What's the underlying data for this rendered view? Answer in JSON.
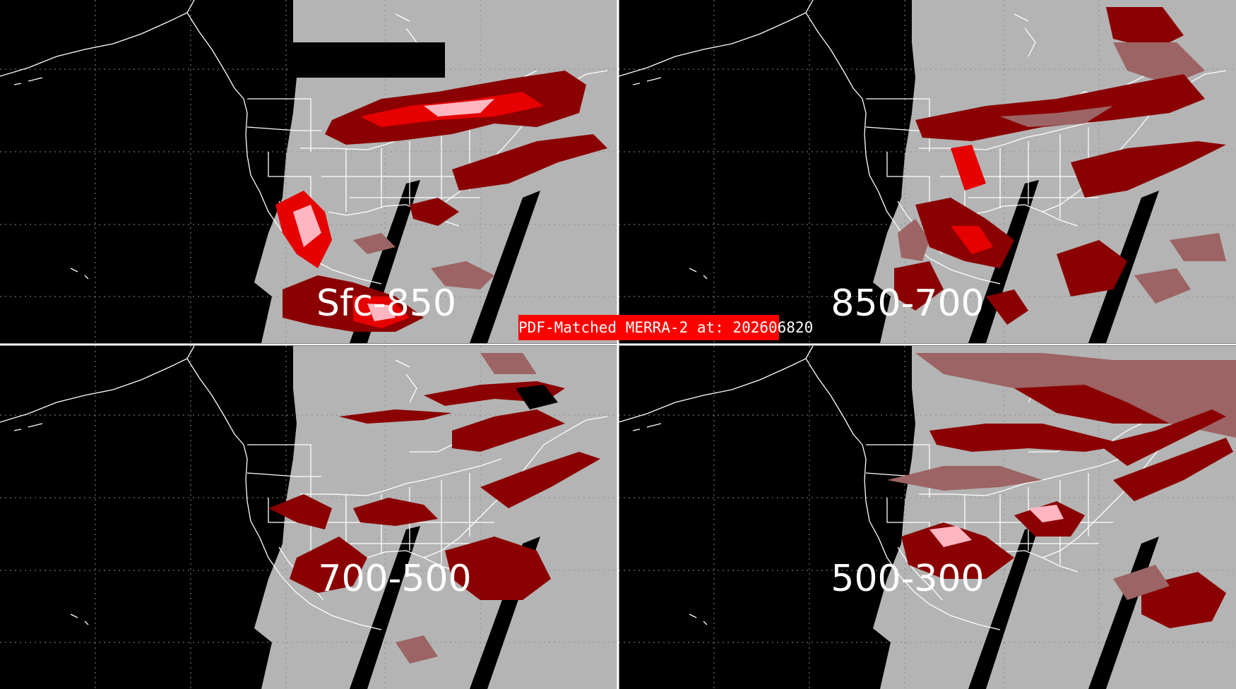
{
  "banner_text": "PDF-Matched MERRA-2 at: 202606820",
  "panels": [
    {
      "id": "p1",
      "label": "Sfc-850"
    },
    {
      "id": "p2",
      "label": "850-700"
    },
    {
      "id": "p3",
      "label": "700-500"
    },
    {
      "id": "p4",
      "label": "500-300"
    }
  ],
  "colors": {
    "background": "#000000",
    "no_data_gray": "#b4b4b4",
    "level_1_maroon": "#9c6464",
    "level_2_dark_red": "#8b0000",
    "level_3_red": "#e60000",
    "level_4_pink": "#ffb6c1",
    "coastline": "#ffffff",
    "divider": "#ffffff",
    "banner": "#ff0000"
  }
}
